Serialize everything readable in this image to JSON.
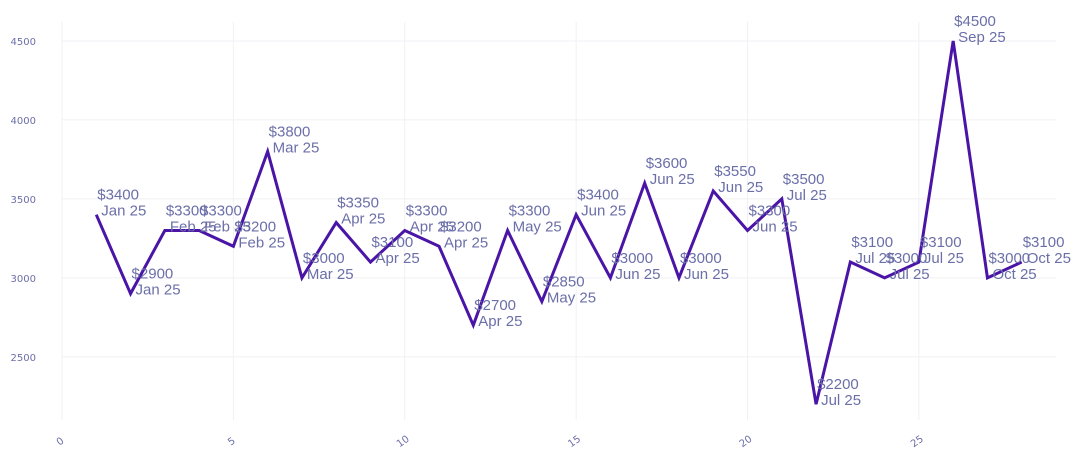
{
  "theme": {
    "line_color": "#4a15a6",
    "label_color": "#6b6fa8",
    "grid_color": "#f1f1f4",
    "background": "#ffffff"
  },
  "chart_data": {
    "type": "line",
    "title": "",
    "xlabel": "",
    "ylabel": "",
    "xlim": [
      0,
      29
    ],
    "ylim": [
      2100,
      4620
    ],
    "x_ticks": [
      0,
      5,
      10,
      15,
      20,
      25
    ],
    "y_ticks": [
      2500,
      3000,
      3500,
      4000,
      4500
    ],
    "grid": true,
    "series": [
      {
        "x": [
          1,
          2,
          3,
          4,
          5,
          6,
          7,
          8,
          9,
          10,
          11,
          12,
          13,
          14,
          15,
          16,
          17,
          18,
          19,
          20,
          21,
          22,
          23,
          24,
          25,
          26,
          27,
          28
        ],
        "values": [
          3400,
          2900,
          3300,
          3300,
          3200,
          3800,
          3000,
          3350,
          3100,
          3300,
          3200,
          2700,
          3300,
          2850,
          3400,
          3000,
          3600,
          3000,
          3550,
          3300,
          3500,
          2200,
          3100,
          3000,
          3100,
          4500,
          3000,
          3100
        ],
        "price_labels": [
          "$3400",
          "$2900",
          "$3300",
          "$3300",
          "$3200",
          "$3800",
          "$3000",
          "$3350",
          "$3100",
          "$3300",
          "$3200",
          "$2700",
          "$3300",
          "$2850",
          "$3400",
          "$3000",
          "$3600",
          "$3000",
          "$3550",
          "$3300",
          "$3500",
          "$2200",
          "$3100",
          "$3000",
          "$3100",
          "$4500",
          "$3000",
          "$3100"
        ],
        "month_labels": [
          "Jan 25",
          "Jan 25",
          "Feb 25",
          "Feb 25",
          "Feb 25",
          "Mar 25",
          "Mar 25",
          "Apr 25",
          "Apr 25",
          "Apr 25",
          "Apr 25",
          "Apr 25",
          "May 25",
          "May 25",
          "Jun 25",
          "Jun 25",
          "Jun 25",
          "Jun 25",
          "Jun 25",
          "Jun 25",
          "Jul 25",
          "Jul 25",
          "Jul 25",
          "Jul 25",
          "Jul 25",
          "Sep 25",
          "Oct 25",
          "Oct 25"
        ]
      }
    ]
  }
}
